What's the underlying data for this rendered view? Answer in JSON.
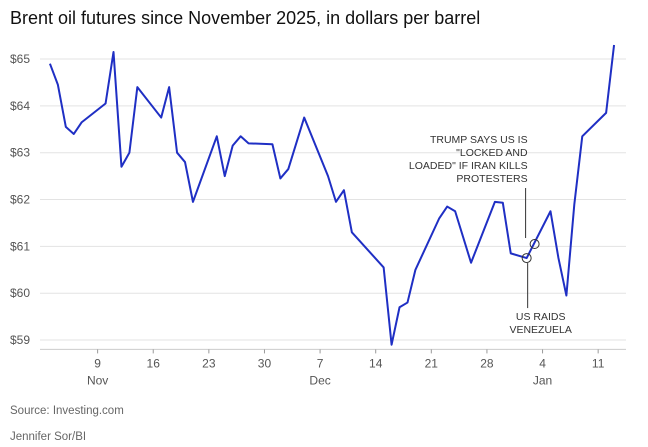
{
  "chart_data": {
    "type": "line",
    "title": "Brent oil futures since November 2025, in dollars per barrel",
    "x": [
      "Nov 3",
      "Nov 4",
      "Nov 5",
      "Nov 6",
      "Nov 7",
      "Nov 10",
      "Nov 11",
      "Nov 12",
      "Nov 13",
      "Nov 14",
      "Nov 17",
      "Nov 18",
      "Nov 19",
      "Nov 20",
      "Nov 21",
      "Nov 24",
      "Nov 25",
      "Nov 26",
      "Nov 27",
      "Nov 28",
      "Dec 1",
      "Dec 2",
      "Dec 3",
      "Dec 4",
      "Dec 5",
      "Dec 8",
      "Dec 9",
      "Dec 10",
      "Dec 11",
      "Dec 15",
      "Dec 16",
      "Dec 17",
      "Dec 18",
      "Dec 19",
      "Dec 22",
      "Dec 23",
      "Dec 24",
      "Dec 26",
      "Dec 29",
      "Dec 30",
      "Dec 31",
      "Jan 2",
      "Jan 5",
      "Jan 6",
      "Jan 7",
      "Jan 8",
      "Jan 9",
      "Jan 12",
      "Jan 13"
    ],
    "series": [
      {
        "name": "Brent",
        "color": "#1f2fc4",
        "values": [
          64.9,
          64.45,
          63.55,
          63.4,
          63.65,
          64.05,
          65.15,
          62.7,
          63.0,
          64.4,
          63.75,
          64.4,
          63.0,
          62.8,
          61.95,
          63.35,
          62.5,
          63.15,
          63.35,
          63.2,
          63.18,
          62.45,
          62.65,
          63.2,
          63.75,
          62.5,
          61.95,
          62.2,
          61.3,
          60.55,
          58.9,
          59.7,
          59.8,
          60.5,
          61.6,
          61.85,
          61.75,
          60.65,
          61.95,
          61.93,
          60.85,
          60.75,
          61.75,
          60.75,
          59.95,
          61.9,
          63.35,
          63.85,
          65.3
        ]
      }
    ],
    "xlim": [
      "Nov 2",
      "Jan 14"
    ],
    "xticks": [
      {
        "value": "Nov 9",
        "label": "9"
      },
      {
        "value": "Nov 16",
        "label": "16"
      },
      {
        "value": "Nov 23",
        "label": "23"
      },
      {
        "value": "Nov 30",
        "label": "30"
      },
      {
        "value": "Dec 7",
        "label": "7"
      },
      {
        "value": "Dec 14",
        "label": "14"
      },
      {
        "value": "Dec 21",
        "label": "21"
      },
      {
        "value": "Dec 28",
        "label": "28"
      },
      {
        "value": "Jan 4",
        "label": "4"
      },
      {
        "value": "Jan 11",
        "label": "11"
      }
    ],
    "xmonth_labels": [
      {
        "value": "Nov 9",
        "label": "Nov"
      },
      {
        "value": "Dec 7",
        "label": "Dec"
      },
      {
        "value": "Jan 4",
        "label": "Jan"
      }
    ],
    "ylim": [
      58.8,
      65.5
    ],
    "yticks": [
      {
        "value": 59,
        "label": "$59"
      },
      {
        "value": 60,
        "label": "$60"
      },
      {
        "value": 61,
        "label": "$61"
      },
      {
        "value": 62,
        "label": "$62"
      },
      {
        "value": 63,
        "label": "$63"
      },
      {
        "value": 64,
        "label": "$64"
      },
      {
        "value": 65,
        "label": "$65"
      }
    ],
    "grid": true,
    "annotations": [
      {
        "x": "Jan 3",
        "y": 61.05,
        "lines": [
          "TRUMP SAYS US IS",
          "\"LOCKED AND",
          "LOADED\" IF IRAN KILLS",
          "PROTESTERS"
        ],
        "position": "above"
      },
      {
        "x": "Jan 2",
        "y": 60.75,
        "lines": [
          "US RAIDS",
          "VENEZUELA"
        ],
        "position": "below"
      }
    ],
    "source": "Source: Investing.com",
    "credit": "Jennifer Sor/BI"
  }
}
